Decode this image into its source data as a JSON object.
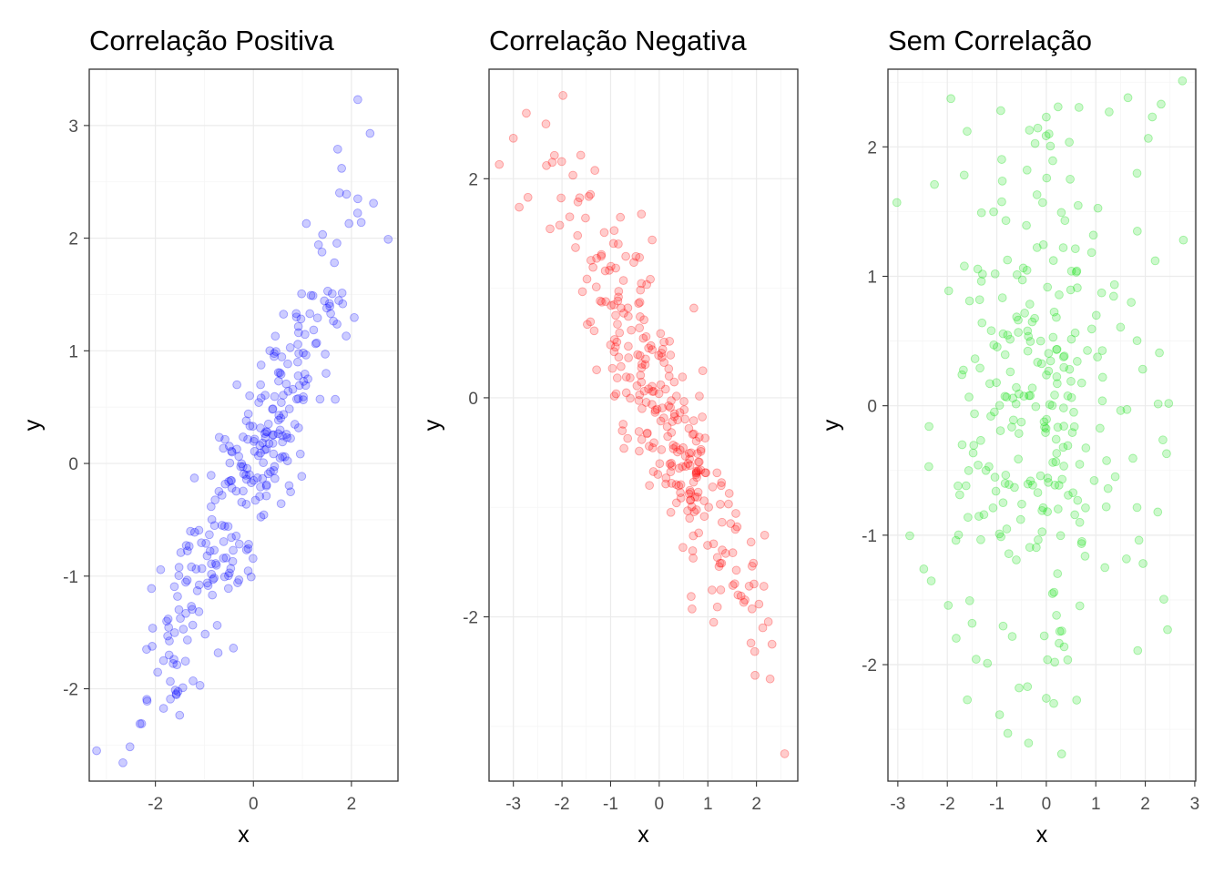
{
  "chart_data": [
    {
      "type": "scatter",
      "title": "Correlação Positiva",
      "xlabel": "x",
      "ylabel": "y",
      "xlim": [
        -3.35,
        2.95
      ],
      "ylim": [
        -2.82,
        3.5
      ],
      "xticks": [
        -2,
        0,
        2
      ],
      "yticks": [
        -2,
        -1,
        0,
        1,
        2,
        3
      ],
      "xtick_labels": [
        "-2",
        "0",
        "2"
      ],
      "ytick_labels": [
        "-2",
        "-1",
        "0",
        "1",
        "2",
        "3"
      ],
      "grid": true,
      "color": "#0000ff",
      "opacity": 0.2,
      "seed": 101,
      "n": 300,
      "correlation": 0.9,
      "points": [
        [
          -3.2,
          -2.55
        ],
        [
          2.75,
          1.99
        ],
        [
          2.13,
          3.23
        ],
        [
          2.38,
          2.93
        ],
        [
          1.8,
          2.62
        ],
        [
          1.72,
          2.79
        ],
        [
          2.45,
          2.31
        ],
        [
          1.95,
          2.13
        ],
        [
          2.2,
          2.14
        ],
        [
          1.9,
          2.39
        ],
        [
          2.13,
          2.35
        ],
        [
          1.08,
          2.13
        ],
        [
          -2.28,
          -2.31
        ],
        [
          -2.08,
          -1.11
        ],
        [
          -2.18,
          -1.65
        ],
        [
          -1.77,
          -1.4
        ],
        [
          -1.09,
          -1.97
        ],
        [
          -1.44,
          -1.99
        ],
        [
          -2.17,
          -2.11
        ]
      ]
    },
    {
      "type": "scatter",
      "title": "Correlação Negativa",
      "xlabel": "x",
      "ylabel": "y",
      "xlim": [
        -3.5,
        2.85
      ],
      "ylim": [
        -3.5,
        3.0
      ],
      "xticks": [
        -3,
        -2,
        -1,
        0,
        1,
        2
      ],
      "yticks": [
        -2,
        0,
        2
      ],
      "xtick_labels": [
        "-3",
        "-2",
        "-1",
        "0",
        "1",
        "2"
      ],
      "ytick_labels": [
        "-2",
        "0",
        "2"
      ],
      "grid": true,
      "color": "#ff0000",
      "opacity": 0.2,
      "seed": 202,
      "n": 300,
      "correlation": -0.9,
      "points": [
        [
          -3.29,
          2.13
        ],
        [
          -3.0,
          2.37
        ],
        [
          -2.33,
          2.5
        ],
        [
          -1.98,
          2.76
        ],
        [
          -2.88,
          1.74
        ],
        [
          -2.7,
          1.83
        ],
        [
          -2.2,
          2.15
        ],
        [
          -2.32,
          2.12
        ],
        [
          2.58,
          -3.25
        ],
        [
          2.32,
          -2.25
        ],
        [
          2.13,
          -2.1
        ],
        [
          1.12,
          -2.05
        ],
        [
          1.62,
          -1.8
        ],
        [
          1.95,
          -1.7
        ],
        [
          1.85,
          -1.72
        ]
      ]
    },
    {
      "type": "scatter",
      "title": "Sem Correlação",
      "xlabel": "x",
      "ylabel": "y",
      "xlim": [
        -3.2,
        3.02
      ],
      "ylim": [
        -2.9,
        2.6
      ],
      "xticks": [
        -3,
        -2,
        -1,
        0,
        1,
        2,
        3
      ],
      "yticks": [
        -2,
        -1,
        0,
        1,
        2
      ],
      "xtick_labels": [
        "-3",
        "-2",
        "-1",
        "0",
        "1",
        "2",
        "3"
      ],
      "ytick_labels": [
        "-2",
        "-1",
        "0",
        "1",
        "2"
      ],
      "grid": true,
      "color": "#00dd00",
      "opacity": 0.2,
      "seed": 303,
      "n": 300,
      "correlation": 0,
      "points": [
        [
          -3.02,
          1.57
        ],
        [
          2.75,
          2.51
        ],
        [
          2.32,
          2.33
        ],
        [
          1.65,
          2.38
        ],
        [
          1.27,
          2.27
        ],
        [
          -0.92,
          2.28
        ],
        [
          0.0,
          2.23
        ],
        [
          -1.6,
          2.12
        ],
        [
          2.45,
          -1.73
        ],
        [
          0.31,
          -2.69
        ],
        [
          0.0,
          -2.26
        ],
        [
          -0.55,
          -2.18
        ],
        [
          -0.38,
          -2.17
        ],
        [
          0.15,
          -2.3
        ],
        [
          -1.19,
          -1.99
        ],
        [
          -2.37,
          -0.16
        ],
        [
          2.43,
          -0.37
        ],
        [
          2.77,
          1.28
        ],
        [
          2.2,
          1.12
        ]
      ]
    }
  ]
}
